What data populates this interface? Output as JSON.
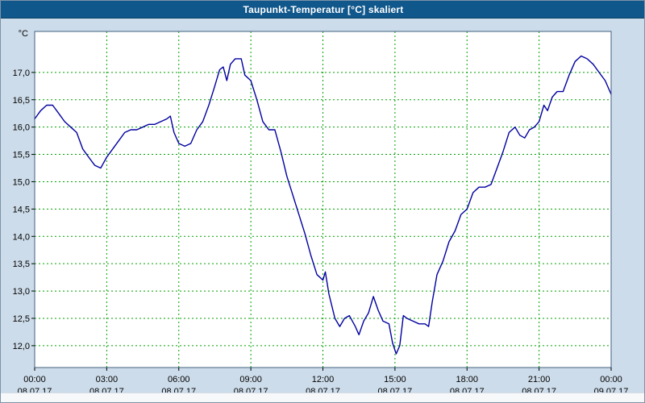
{
  "window": {
    "title": "Taupunkt-Temperatur [°C] skaliert"
  },
  "chart_data": {
    "type": "line",
    "title": "Taupunkt-Temperatur [°C] skaliert",
    "xlabel": "",
    "ylabel": "°C",
    "xlim": [
      0,
      24
    ],
    "ylim": [
      11.6,
      17.75
    ],
    "grid": true,
    "legend": "none",
    "x_tick_hours": [
      0,
      3,
      6,
      9,
      12,
      15,
      18,
      21,
      24
    ],
    "x_tick_times": [
      "00:00",
      "03:00",
      "06:00",
      "09:00",
      "12:00",
      "15:00",
      "18:00",
      "21:00",
      "00:00"
    ],
    "x_tick_dates": [
      "08.07.17",
      "08.07.17",
      "08.07.17",
      "08.07.17",
      "08.07.17",
      "08.07.17",
      "08.07.17",
      "08.07.17",
      "09.07.17"
    ],
    "y_ticks": [
      12.0,
      12.5,
      13.0,
      13.5,
      14.0,
      14.5,
      15.0,
      15.5,
      16.0,
      16.5,
      17.0
    ],
    "y_tick_labels": [
      "12,0",
      "12,5",
      "13,0",
      "13,5",
      "14,0",
      "14,5",
      "15,0",
      "15,5",
      "16,0",
      "16,5",
      "17,0"
    ],
    "line_color": "#0000a0",
    "grid_color": "#00a000",
    "plot_bg": "#ffffff",
    "plot_border_color": "#40607f",
    "series": [
      {
        "name": "Taupunkt-Temperatur",
        "points": [
          [
            0,
            16.15
          ],
          [
            0.25,
            16.3
          ],
          [
            0.5,
            16.4
          ],
          [
            0.75,
            16.4
          ],
          [
            1,
            16.25
          ],
          [
            1.25,
            16.1
          ],
          [
            1.5,
            16.0
          ],
          [
            1.75,
            15.9
          ],
          [
            2,
            15.6
          ],
          [
            2.25,
            15.45
          ],
          [
            2.5,
            15.3
          ],
          [
            2.75,
            15.25
          ],
          [
            3,
            15.45
          ],
          [
            3.25,
            15.6
          ],
          [
            3.5,
            15.75
          ],
          [
            3.75,
            15.9
          ],
          [
            4,
            15.95
          ],
          [
            4.25,
            15.95
          ],
          [
            4.5,
            16.0
          ],
          [
            4.75,
            16.05
          ],
          [
            5,
            16.05
          ],
          [
            5.25,
            16.1
          ],
          [
            5.5,
            16.15
          ],
          [
            5.65,
            16.2
          ],
          [
            5.8,
            15.9
          ],
          [
            6,
            15.7
          ],
          [
            6.25,
            15.65
          ],
          [
            6.5,
            15.7
          ],
          [
            6.75,
            15.95
          ],
          [
            7,
            16.1
          ],
          [
            7.25,
            16.4
          ],
          [
            7.5,
            16.75
          ],
          [
            7.7,
            17.05
          ],
          [
            7.85,
            17.1
          ],
          [
            8,
            16.85
          ],
          [
            8.15,
            17.15
          ],
          [
            8.35,
            17.25
          ],
          [
            8.6,
            17.25
          ],
          [
            8.75,
            16.95
          ],
          [
            9,
            16.85
          ],
          [
            9.25,
            16.5
          ],
          [
            9.5,
            16.1
          ],
          [
            9.75,
            15.95
          ],
          [
            10,
            15.95
          ],
          [
            10.25,
            15.55
          ],
          [
            10.5,
            15.1
          ],
          [
            10.75,
            14.75
          ],
          [
            11,
            14.4
          ],
          [
            11.25,
            14.05
          ],
          [
            11.5,
            13.65
          ],
          [
            11.75,
            13.3
          ],
          [
            12,
            13.2
          ],
          [
            12.1,
            13.35
          ],
          [
            12.25,
            12.95
          ],
          [
            12.5,
            12.5
          ],
          [
            12.7,
            12.35
          ],
          [
            12.9,
            12.5
          ],
          [
            13.1,
            12.55
          ],
          [
            13.35,
            12.35
          ],
          [
            13.5,
            12.2
          ],
          [
            13.7,
            12.45
          ],
          [
            13.9,
            12.6
          ],
          [
            14.1,
            12.9
          ],
          [
            14.3,
            12.65
          ],
          [
            14.5,
            12.45
          ],
          [
            14.75,
            12.4
          ],
          [
            14.9,
            12.05
          ],
          [
            15.05,
            11.85
          ],
          [
            15.2,
            12.0
          ],
          [
            15.35,
            12.55
          ],
          [
            15.5,
            12.5
          ],
          [
            15.75,
            12.45
          ],
          [
            16,
            12.4
          ],
          [
            16.25,
            12.4
          ],
          [
            16.4,
            12.35
          ],
          [
            16.55,
            12.8
          ],
          [
            16.75,
            13.3
          ],
          [
            17,
            13.55
          ],
          [
            17.25,
            13.9
          ],
          [
            17.5,
            14.1
          ],
          [
            17.75,
            14.4
          ],
          [
            18,
            14.5
          ],
          [
            18.25,
            14.8
          ],
          [
            18.5,
            14.9
          ],
          [
            18.75,
            14.9
          ],
          [
            19,
            14.95
          ],
          [
            19.25,
            15.25
          ],
          [
            19.5,
            15.55
          ],
          [
            19.75,
            15.9
          ],
          [
            20,
            16.0
          ],
          [
            20.2,
            15.85
          ],
          [
            20.4,
            15.8
          ],
          [
            20.6,
            15.95
          ],
          [
            20.8,
            16.0
          ],
          [
            21,
            16.1
          ],
          [
            21.2,
            16.4
          ],
          [
            21.35,
            16.3
          ],
          [
            21.55,
            16.55
          ],
          [
            21.75,
            16.65
          ],
          [
            22,
            16.65
          ],
          [
            22.25,
            16.95
          ],
          [
            22.5,
            17.2
          ],
          [
            22.75,
            17.3
          ],
          [
            23,
            17.25
          ],
          [
            23.25,
            17.15
          ],
          [
            23.5,
            17.0
          ],
          [
            23.75,
            16.85
          ],
          [
            24,
            16.6
          ]
        ]
      }
    ]
  },
  "colors": {
    "background": "#cddcea",
    "titlebar": "#10578c",
    "title_text": "#ffffff"
  }
}
